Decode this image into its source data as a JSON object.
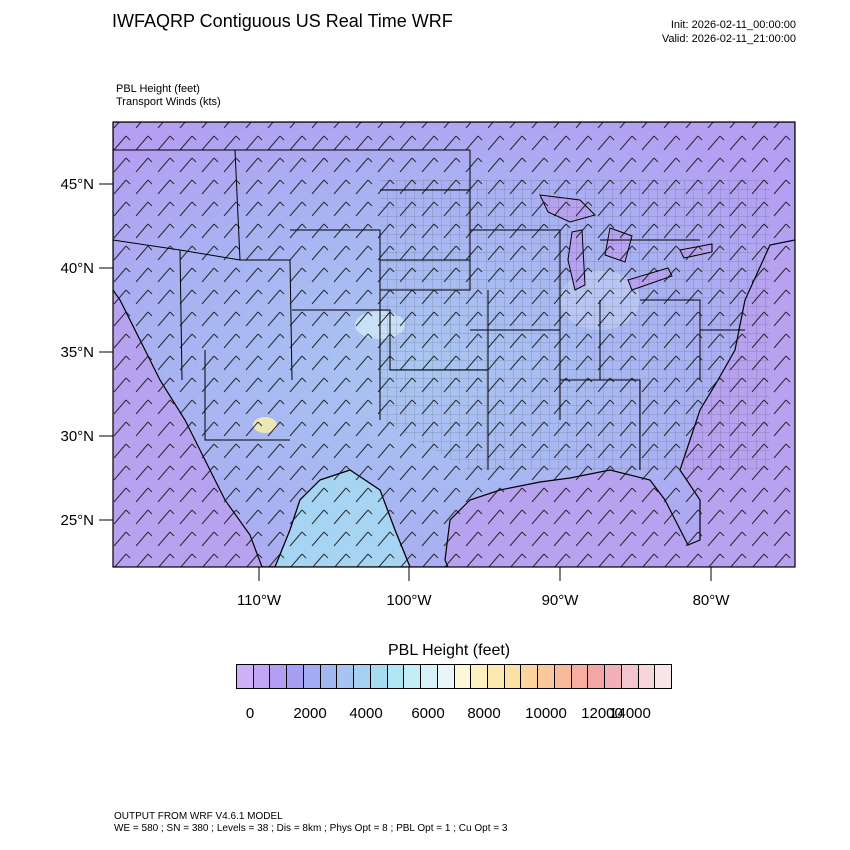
{
  "header": {
    "title": "IWFAQRP Contiguous US Real Time WRF",
    "init": "Init: 2026-02-11_00:00:00",
    "valid": "Valid: 2026-02-11_21:00:00",
    "field_line_1": "PBL Height   (feet)",
    "field_line_2": "Transport Winds   (kts)"
  },
  "map": {
    "lat_ticks": [
      "45°N",
      "40°N",
      "35°N",
      "30°N",
      "25°N"
    ],
    "lon_ticks": [
      "110°W",
      "100°W",
      "90°W",
      "80°W"
    ],
    "background_colors": {
      "low": "#b59af3",
      "mid": "#a6d4f2",
      "high": "#f5e9a8",
      "ocean_gulf": "#b7a2f0",
      "ocean_atlantic": "#c9b9f3"
    }
  },
  "colorbar": {
    "title": "PBL Height  (feet)",
    "labels": [
      "0",
      "2000",
      "4000",
      "6000",
      "8000",
      "10000",
      "12000",
      "14000"
    ],
    "colors": [
      "#cdb1f7",
      "#c0a6f5",
      "#b29ef3",
      "#a79ff2",
      "#a4acf1",
      "#a4b8f0",
      "#a6c4ef",
      "#a6d0ef",
      "#a6dcf0",
      "#b0e6f3",
      "#c3eef6",
      "#d6f2f8",
      "#e8f6fa",
      "#fbf7d8",
      "#fdf1c0",
      "#fde9b0",
      "#fde0a6",
      "#fcd49e",
      "#fac89a",
      "#f8bb9a",
      "#f7aea0",
      "#f5a4a8",
      "#f2b1b8",
      "#f3c5cc",
      "#f6d6da",
      "#f9e6e8"
    ]
  },
  "footer": {
    "line1": "OUTPUT FROM WRF V4.6.1 MODEL",
    "line2": "WE = 580 ; SN = 380 ; Levels = 38 ; Dis = 8km ; Phys Opt = 8 ; PBL Opt = 1 ; Cu Opt = 3"
  }
}
